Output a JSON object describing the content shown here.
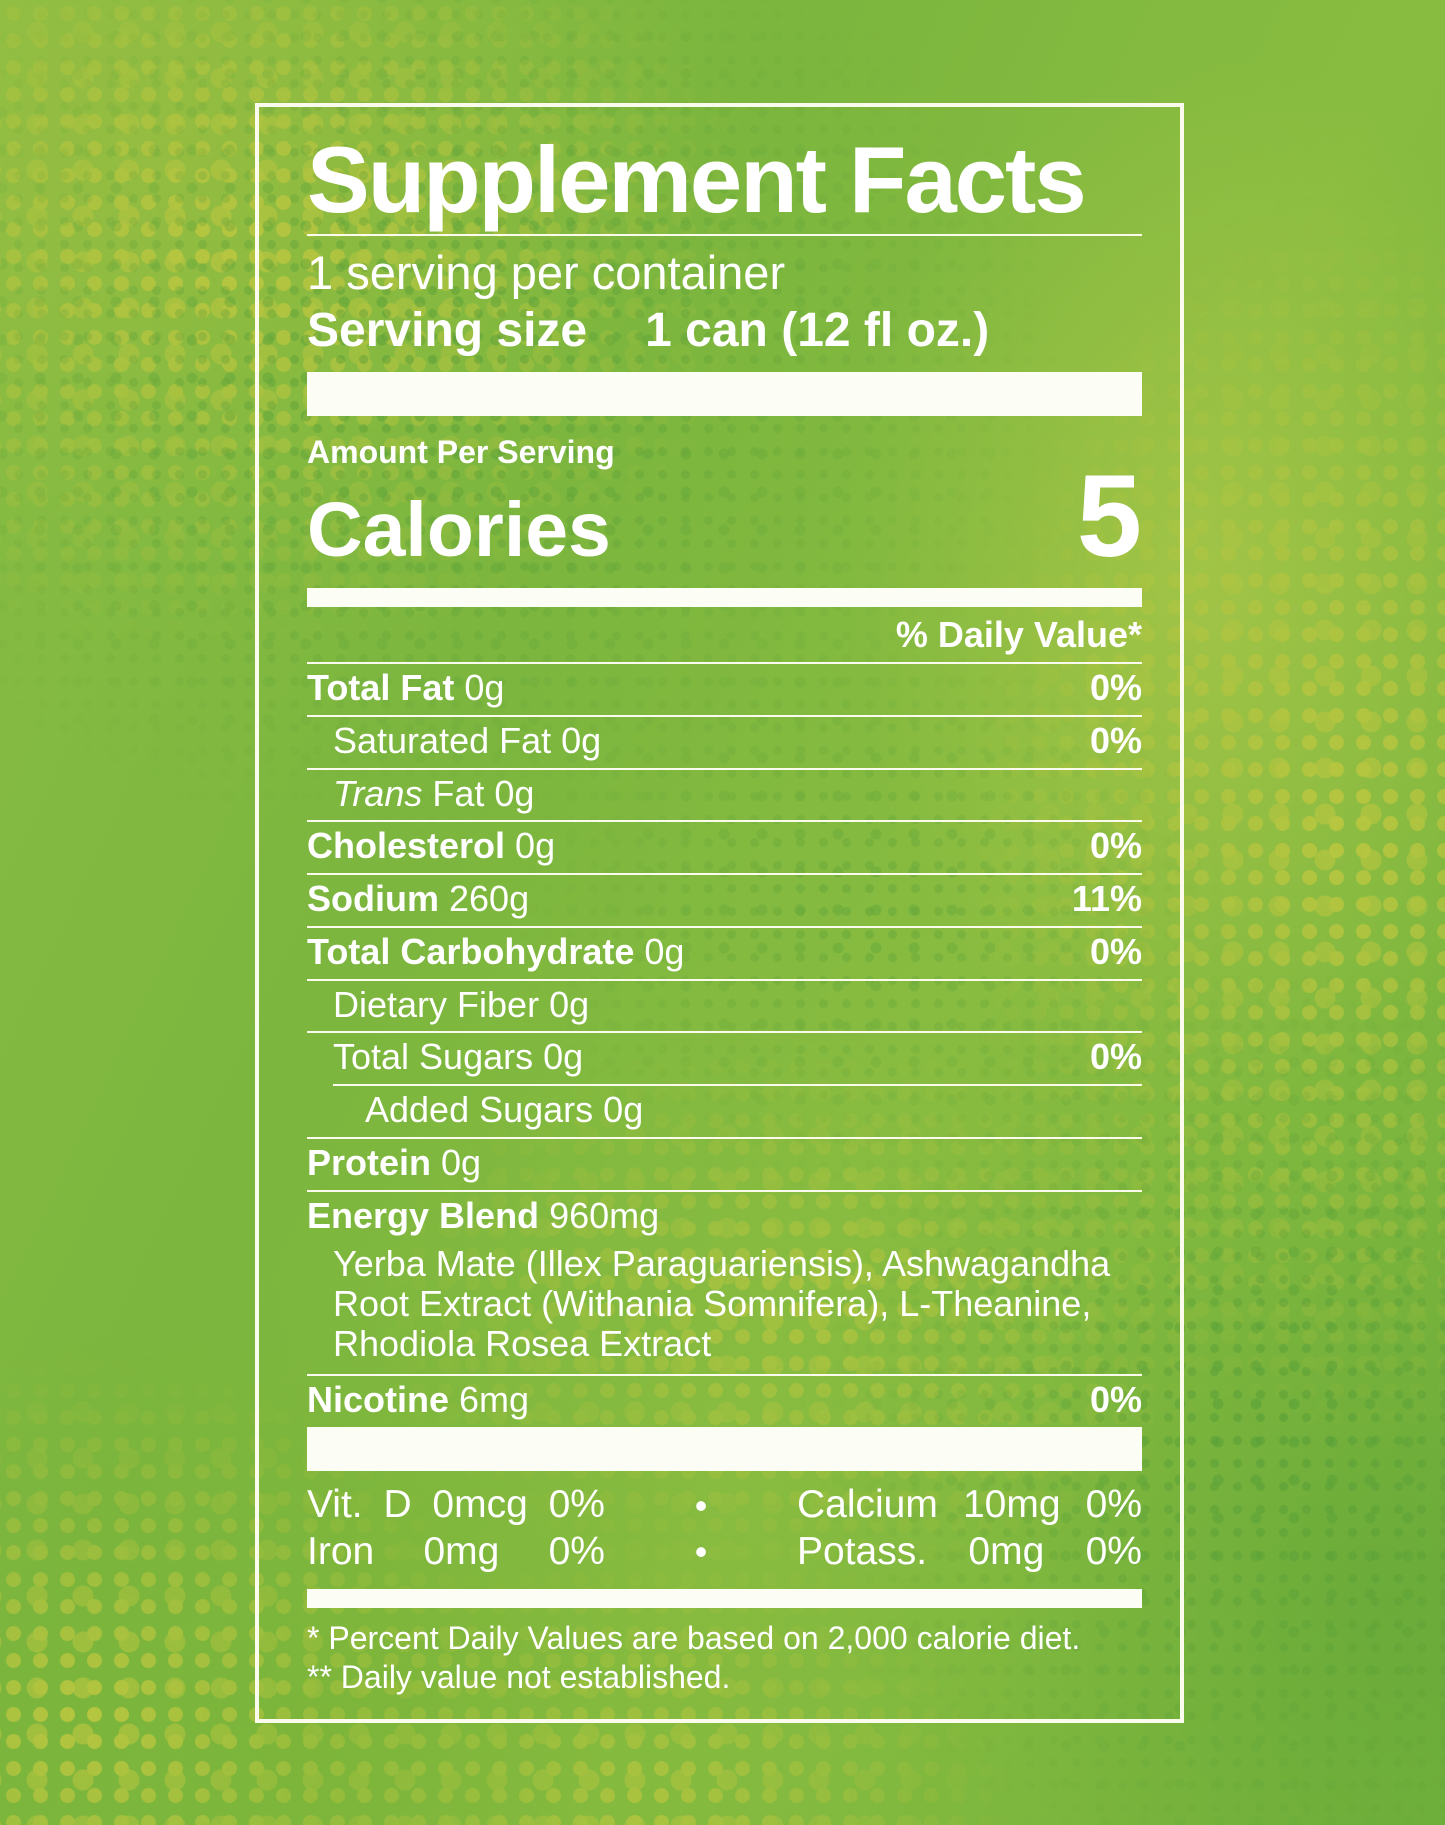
{
  "colors": {
    "background_green": "#7ab83e",
    "halftone_yellow": "#b9c640",
    "halftone_dark_green": "#549e38",
    "panel_border_white": "#fafbec",
    "text_white": "#ffffff"
  },
  "label": {
    "title": "Supplement Facts",
    "servings_per_container": "1 serving per container",
    "serving_size_label": "Serving size",
    "serving_size_value": "1 can (12 fl oz.)",
    "amount_per_serving": "Amount Per Serving",
    "calories_label": "Calories",
    "calories_value": "5",
    "daily_value_header": "% Daily Value*",
    "nutrient_rows": [
      {
        "label": "Total Fat",
        "amount": "0g",
        "dv": "0%",
        "bold": true,
        "indent": 0
      },
      {
        "label": "Saturated Fat",
        "amount": "0g",
        "dv": "0%",
        "bold": false,
        "indent": 1
      },
      {
        "label": "Trans",
        "amount": "Fat 0g",
        "dv": "",
        "bold": false,
        "italic_label": true,
        "indent": 1
      },
      {
        "label": "Cholesterol",
        "amount": "0g",
        "dv": "0%",
        "bold": true,
        "indent": 0
      },
      {
        "label": "Sodium",
        "amount": "260g",
        "dv": "11%",
        "bold": true,
        "indent": 0
      },
      {
        "label": "Total Carbohydrate",
        "amount": "0g",
        "dv": "0%",
        "bold": true,
        "indent": 0
      },
      {
        "label": "Dietary Fiber",
        "amount": "0g",
        "dv": "",
        "bold": false,
        "indent": 1
      },
      {
        "label": "Total Sugars",
        "amount": "0g",
        "dv": "0%",
        "bold": false,
        "indent": 1
      },
      {
        "label": "Added Sugars",
        "amount": "0g",
        "dv": "",
        "bold": false,
        "indent": 2,
        "partial_rule": true
      },
      {
        "label": "Protein",
        "amount": "0g",
        "dv": "",
        "bold": true,
        "indent": 0
      },
      {
        "label": "Energy Blend",
        "amount": "960mg",
        "dv": "",
        "bold": true,
        "indent": 0,
        "description": "Yerba Mate (Illex Paraguariensis), Ashwagandha Root Extract (Withania Somnifera), L-Theanine, Rhodiola Rosea Extract"
      },
      {
        "label": "Nicotine",
        "amount": "6mg",
        "dv": "0%",
        "bold": true,
        "indent": 0
      }
    ],
    "micronutrient_rows": [
      {
        "left": [
          "Vit.",
          "D",
          "0mcg",
          "0%"
        ],
        "bullet": "•",
        "right": [
          "Calcium",
          "10mg",
          "0%"
        ]
      },
      {
        "left": [
          "Iron",
          "0mg",
          "0%"
        ],
        "bullet": "•",
        "right": [
          "Potass.",
          "0mg",
          "0%"
        ]
      }
    ],
    "footnotes": [
      "* Percent Daily Values are based on 2,000 calorie diet.",
      "** Daily value not established."
    ]
  }
}
